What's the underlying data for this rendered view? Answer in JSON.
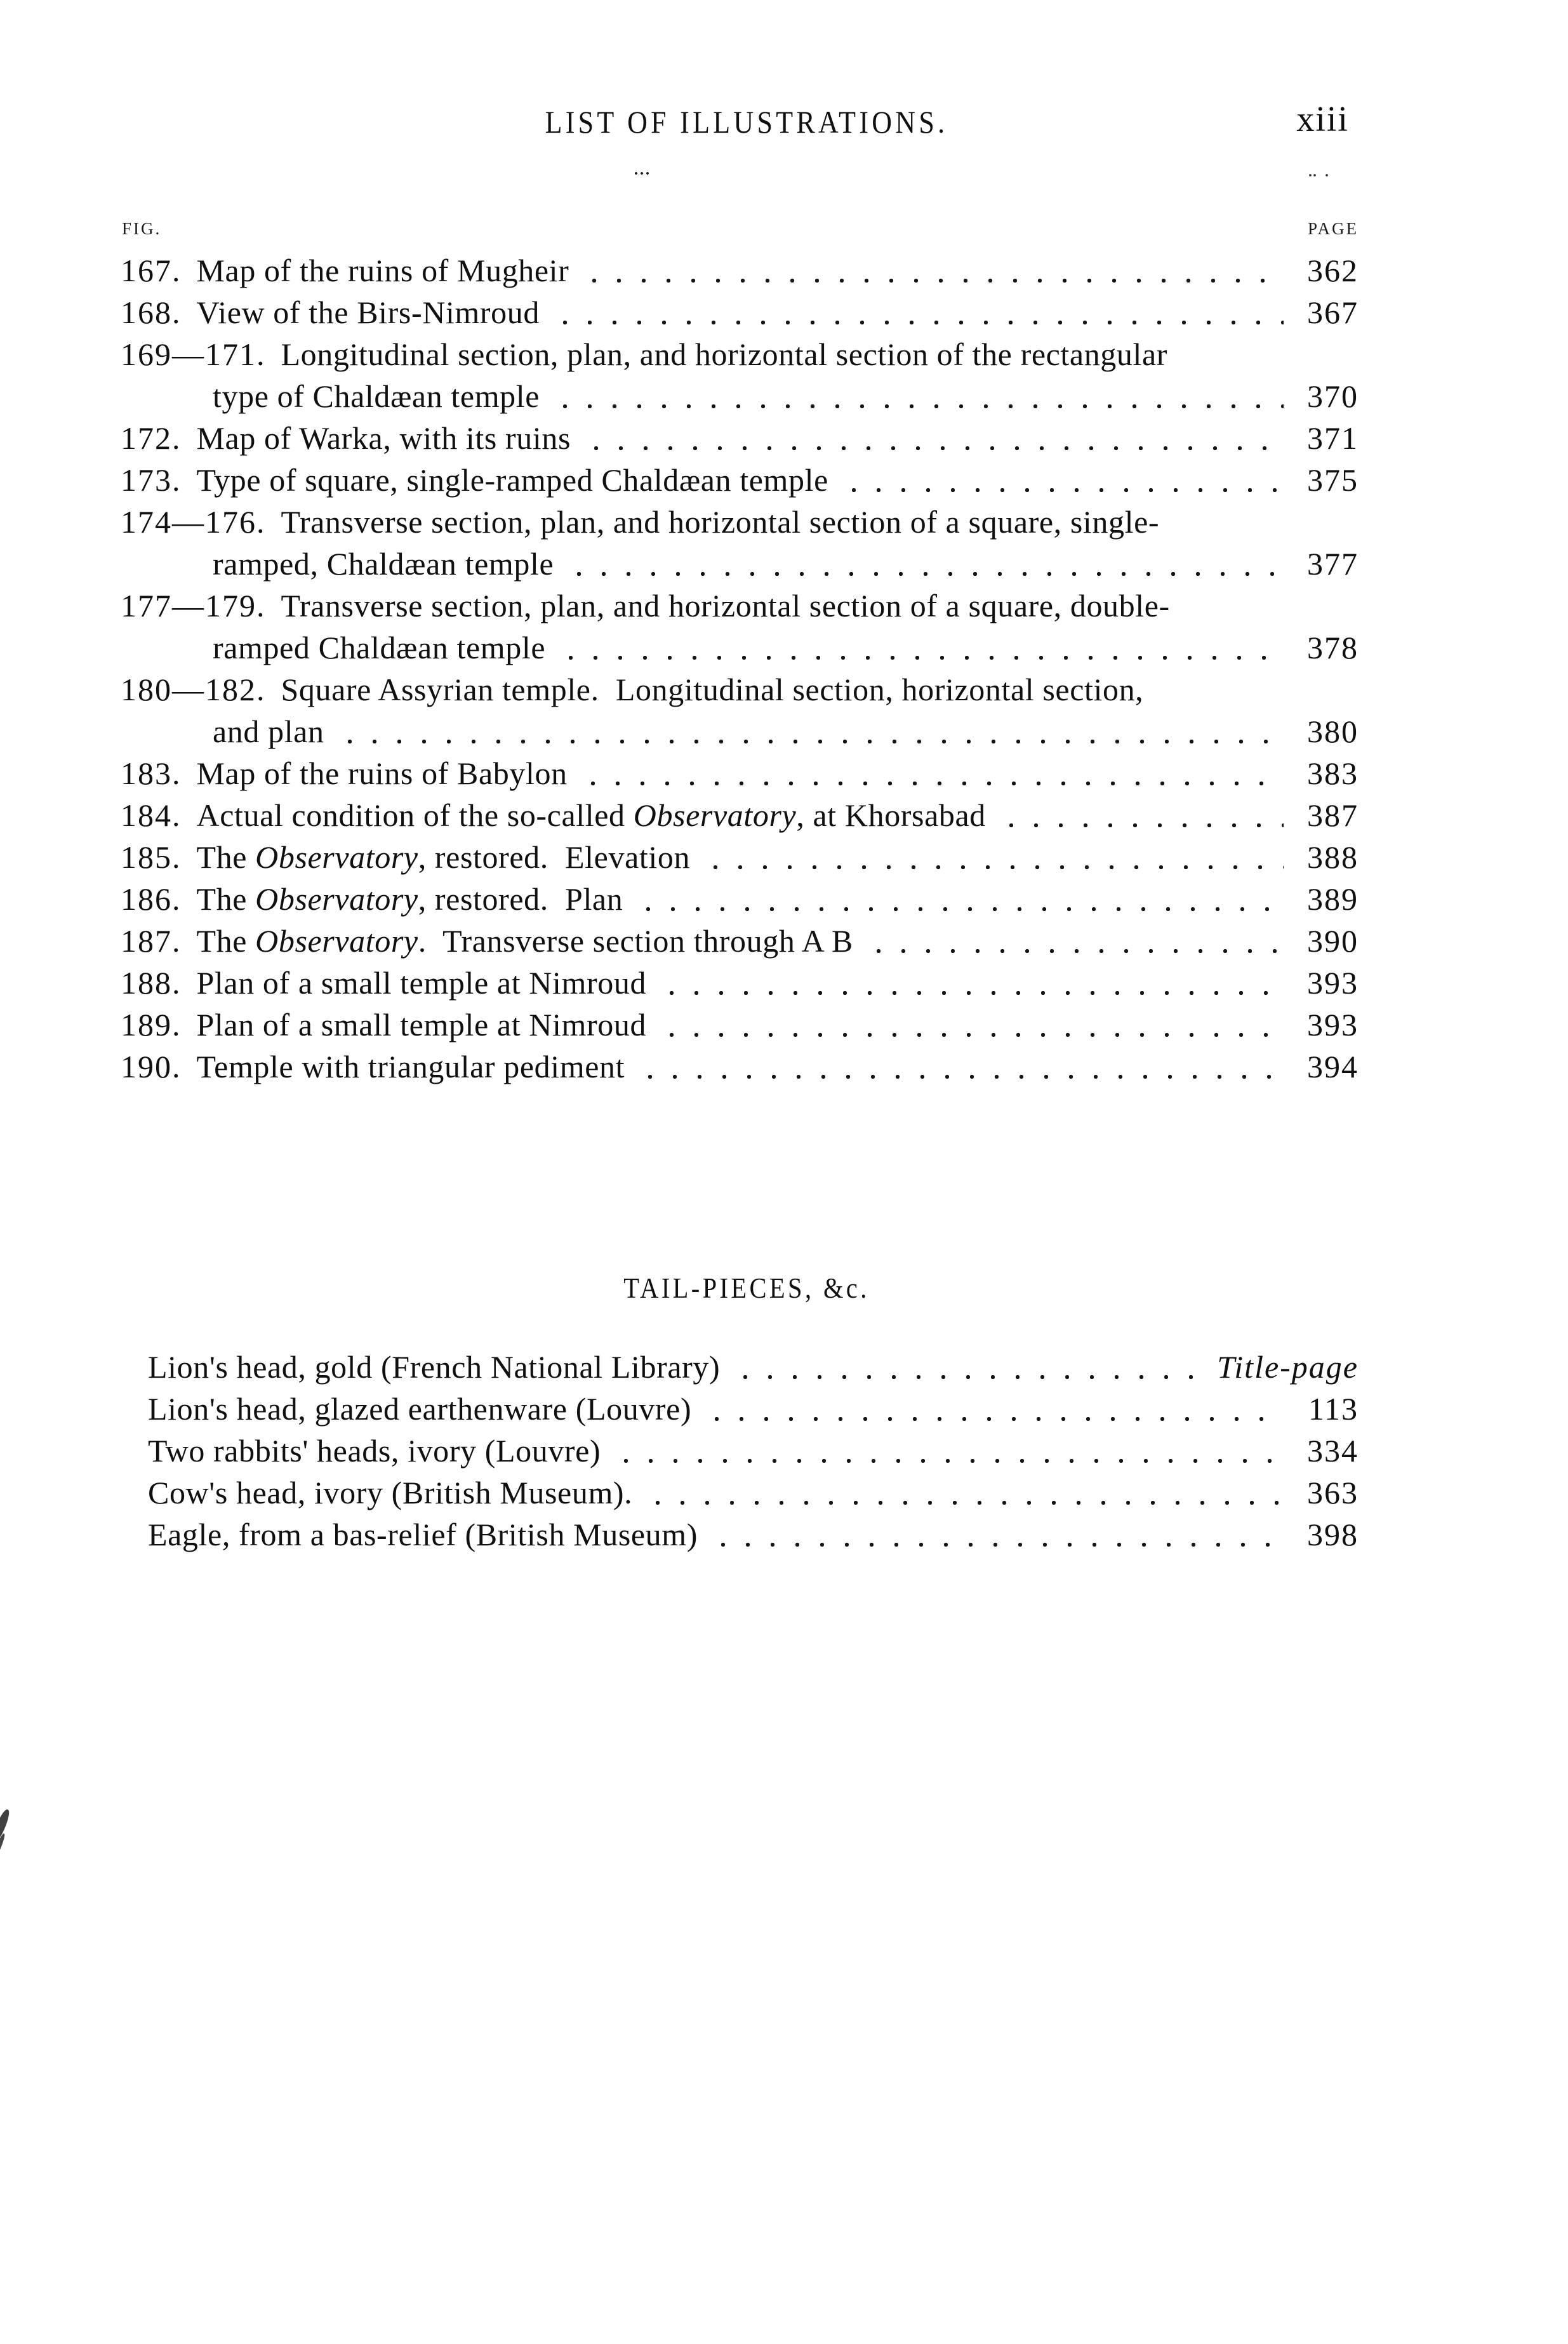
{
  "page": {
    "header_title": "LIST OF ILLUSTRATIONS.",
    "page_number": "xiii"
  },
  "columns": {
    "fig": "FIG.",
    "page": "PAGE"
  },
  "figures": [
    {
      "number": "167.",
      "page": "362",
      "lines": [
        [
          {
            "t": "Map of the ruins of Mugheir"
          }
        ]
      ]
    },
    {
      "number": "168.",
      "page": "367",
      "lines": [
        [
          {
            "t": "View of the Birs-Nimroud"
          }
        ]
      ]
    },
    {
      "number": "169—171.",
      "page": "370",
      "lines": [
        [
          {
            "t": "Longitudinal section, plan, and horizontal section of the rectangular"
          }
        ],
        [
          {
            "t": "type of Chaldæan temple"
          }
        ]
      ]
    },
    {
      "number": "172.",
      "page": "371",
      "lines": [
        [
          {
            "t": "Map of Warka, with its ruins"
          }
        ]
      ]
    },
    {
      "number": "173.",
      "page": "375",
      "lines": [
        [
          {
            "t": "Type of square, single-ramped Chaldæan temple"
          }
        ]
      ]
    },
    {
      "number": "174—176.",
      "page": "377",
      "lines": [
        [
          {
            "t": "Transverse section, plan, and horizontal section of a square, single-"
          }
        ],
        [
          {
            "t": "ramped, Chaldæan temple"
          }
        ]
      ]
    },
    {
      "number": "177—179.",
      "page": "378",
      "lines": [
        [
          {
            "t": "Transverse section, plan, and horizontal section of a square, double-"
          }
        ],
        [
          {
            "t": "ramped Chaldæan temple"
          }
        ]
      ]
    },
    {
      "number": "180—182.",
      "page": "380",
      "lines": [
        [
          {
            "t": "Square Assyrian temple.  Longitudinal section, horizontal section,"
          }
        ],
        [
          {
            "t": "and plan"
          }
        ]
      ]
    },
    {
      "number": "183.",
      "page": "383",
      "lines": [
        [
          {
            "t": "Map of the ruins of Babylon"
          }
        ]
      ]
    },
    {
      "number": "184.",
      "page": "387",
      "lines": [
        [
          {
            "t": "Actual condition of the so-called "
          },
          {
            "t": "Observatory",
            "i": true
          },
          {
            "t": ", at Khorsabad"
          }
        ]
      ]
    },
    {
      "number": "185.",
      "page": "388",
      "lines": [
        [
          {
            "t": "The "
          },
          {
            "t": "Observatory",
            "i": true
          },
          {
            "t": ", restored.  Elevation"
          }
        ]
      ]
    },
    {
      "number": "186.",
      "page": "389",
      "lines": [
        [
          {
            "t": "The "
          },
          {
            "t": "Observatory",
            "i": true
          },
          {
            "t": ", restored.  Plan"
          }
        ]
      ]
    },
    {
      "number": "187.",
      "page": "390",
      "lines": [
        [
          {
            "t": "The "
          },
          {
            "t": "Observatory",
            "i": true
          },
          {
            "t": ".  Transverse section through A B"
          }
        ]
      ]
    },
    {
      "number": "188.",
      "page": "393",
      "lines": [
        [
          {
            "t": "Plan of a small temple at Nimroud"
          }
        ]
      ]
    },
    {
      "number": "189.",
      "page": "393",
      "lines": [
        [
          {
            "t": "Plan of a small temple at Nimroud"
          }
        ]
      ]
    },
    {
      "number": "190.",
      "page": "394",
      "lines": [
        [
          {
            "t": "Temple with triangular pediment"
          }
        ]
      ]
    }
  ],
  "tailpieces": {
    "title": "TAIL-PIECES, &c.",
    "entries": [
      {
        "page": "Title-page",
        "page_italic": true,
        "lines": [
          [
            {
              "t": "Lion's head, gold (French National Library)"
            }
          ]
        ]
      },
      {
        "page": "113",
        "lines": [
          [
            {
              "t": "Lion's head, glazed earthenware (Louvre)"
            }
          ]
        ]
      },
      {
        "page": "334",
        "lines": [
          [
            {
              "t": "Two rabbits' heads, ivory (Louvre)"
            }
          ]
        ]
      },
      {
        "page": "363",
        "lines": [
          [
            {
              "t": "Cow's head, ivory (British Museum)."
            }
          ]
        ]
      },
      {
        "page": "398",
        "lines": [
          [
            {
              "t": "Eagle, from a bas-relief (British Museum)"
            }
          ]
        ]
      }
    ]
  }
}
